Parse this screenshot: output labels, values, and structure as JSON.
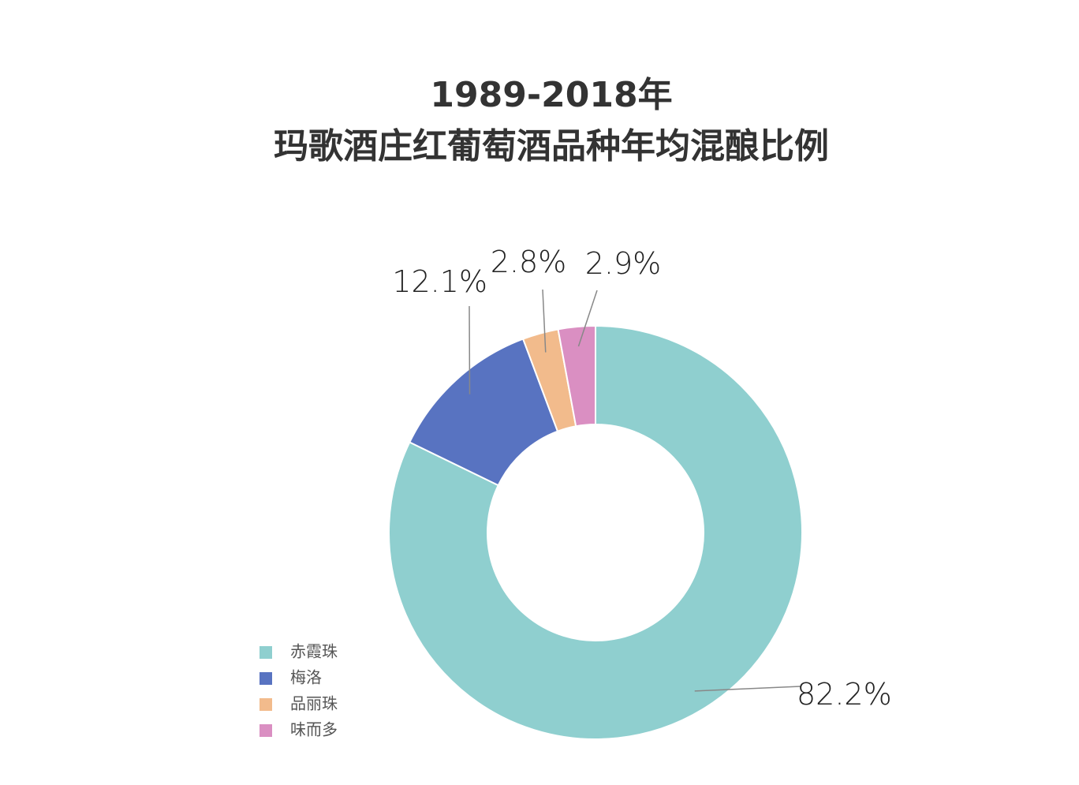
{
  "chart_data": {
    "type": "donut",
    "title": [
      "1989-2018年",
      "玛歌酒庄红葡萄酒品种年均混酿比例"
    ],
    "categories": [
      "赤霞珠",
      "梅洛",
      "品丽珠",
      "味而多"
    ],
    "values": [
      82.2,
      12.1,
      2.8,
      2.9
    ],
    "value_labels": [
      "82.2%",
      "12.1%",
      "2.8%",
      "2.9%"
    ],
    "colors": [
      "#8fcfcf",
      "#5873c1",
      "#f2bb8c",
      "#da8fc2"
    ],
    "legend": "bottom-left"
  }
}
